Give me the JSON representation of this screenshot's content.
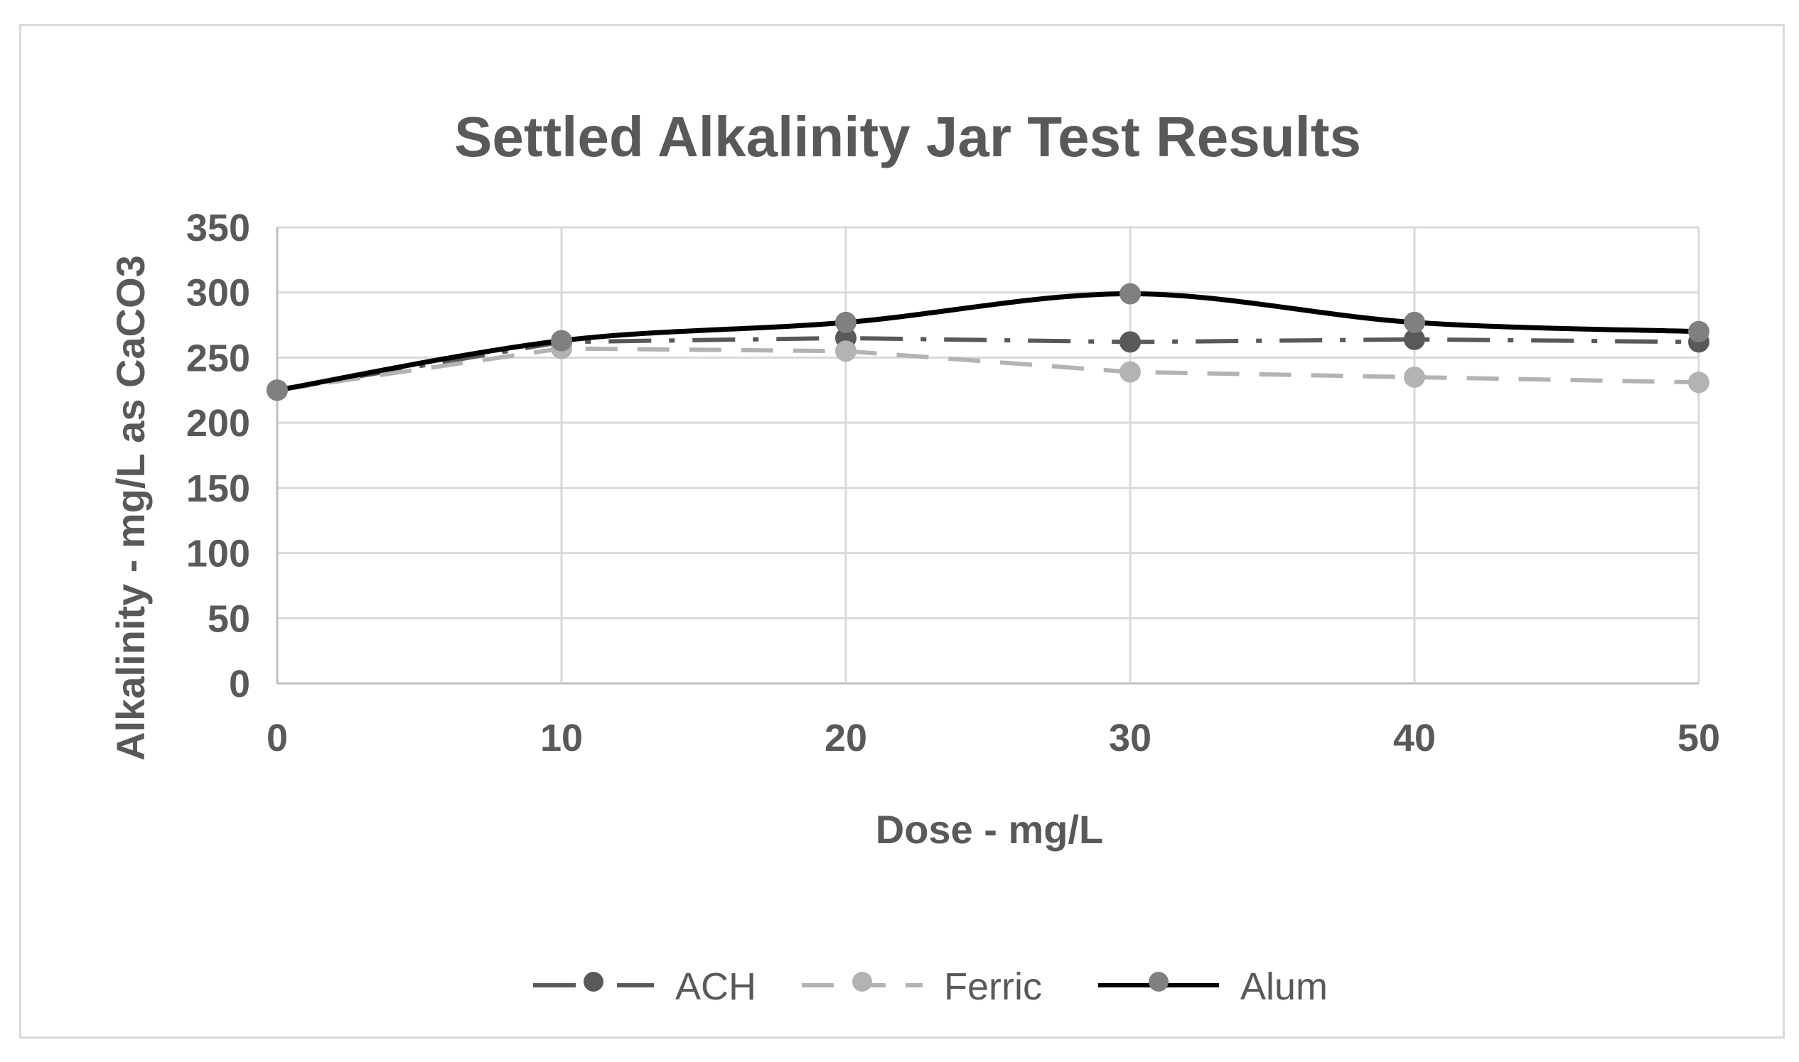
{
  "chart_data": {
    "type": "line",
    "title": "Settled Alkalinity Jar Test Results",
    "xlabel": "Dose - mg/L",
    "ylabel": "Alkalinity - mg/L as CaCO3",
    "x": [
      0,
      10,
      20,
      30,
      40,
      50
    ],
    "xlim": [
      0,
      50
    ],
    "ylim": [
      0,
      350
    ],
    "xticks": [
      "0",
      "10",
      "20",
      "30",
      "40",
      "50"
    ],
    "yticks": [
      "0",
      "50",
      "100",
      "150",
      "200",
      "250",
      "300",
      "350"
    ],
    "grid": true,
    "legend_position": "bottom",
    "series": [
      {
        "name": "ACH",
        "values": [
          225,
          262,
          265,
          262,
          264,
          262
        ],
        "color": "#595959",
        "line_style": "dash-dot",
        "smooth": false
      },
      {
        "name": "Ferric",
        "values": [
          225,
          257,
          255,
          239,
          235,
          231
        ],
        "color": "#b3b3b3",
        "line_style": "dashed",
        "smooth": false
      },
      {
        "name": "Alum",
        "values": [
          225,
          263,
          277,
          299,
          277,
          270
        ],
        "color": "#000000",
        "marker_color": "#808080",
        "line_style": "solid",
        "smooth": true
      }
    ]
  }
}
